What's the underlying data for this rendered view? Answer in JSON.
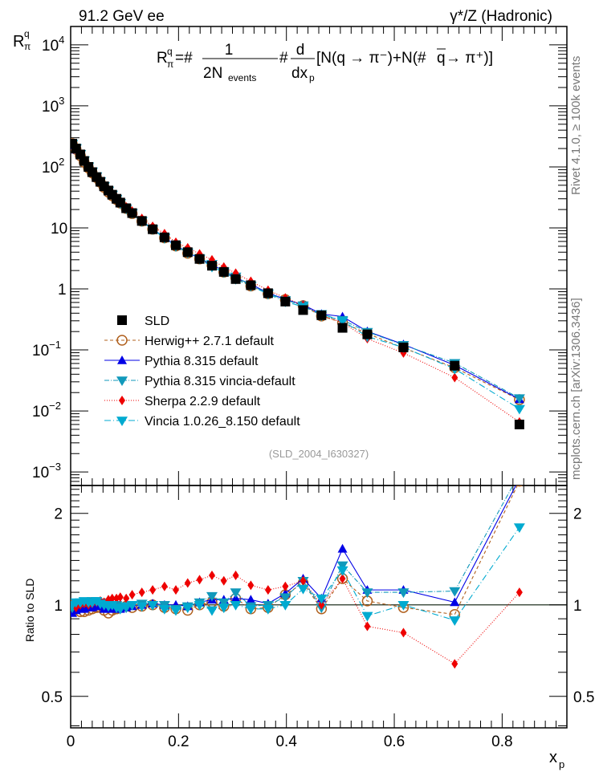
{
  "header": {
    "left": "91.2 GeV ee",
    "right": "γ*/Z (Hadronic)"
  },
  "side_text": {
    "rivet": "Rivet 4.1.0, ≥ 100k events",
    "mcplots": "mcplots.cern.ch [arXiv:1306.3436]"
  },
  "analysis_id": "(SLD_2004_I630327)",
  "formula": {
    "lhs": "R",
    "lhs_sup": "q",
    "lhs_sub": "π",
    "eq": "=#",
    "frac1_num": "1",
    "frac1_den": "2N",
    "frac1_den_sub": "events",
    "hash": "#",
    "frac2_num": "d",
    "frac2_den": "dx",
    "frac2_den_sub": "p",
    "rhs": "[N(q → π⁻)+N(#",
    "qbar": "q",
    "rhs2": " → π⁺)]"
  },
  "colors": {
    "SLD": "#000000",
    "herwig": "#b0601e",
    "pythia": "#0000e6",
    "pythia_vincia": "#1199bb",
    "sherpa": "#ee0000",
    "vincia": "#00aad0"
  },
  "chart_data": {
    "type": "scatter",
    "xlabel": "x",
    "xlabel_sub": "p",
    "ylabel": "R",
    "ylabel_sup": "q",
    "ylabel_sub": "π",
    "ratio_ylabel": "Ratio to SLD",
    "xlim": [
      0,
      0.92
    ],
    "ylim": [
      0.0006,
      20000
    ],
    "yscale": "log",
    "ratio_ylim": [
      0.394,
      2.47
    ],
    "ratio_yscale": "log",
    "x_ticks": [
      "0",
      "0.2",
      "0.4",
      "0.6",
      "0.8"
    ],
    "x_tick_values": [
      0,
      0.2,
      0.4,
      0.6,
      0.8
    ],
    "y_ticks": [
      {
        "v": 10000,
        "base": "10",
        "exp": "4"
      },
      {
        "v": 1000,
        "base": "10",
        "exp": "3"
      },
      {
        "v": 100,
        "base": "10",
        "exp": "2"
      },
      {
        "v": 10,
        "base": "10",
        "exp": ""
      },
      {
        "v": 1,
        "base": "1",
        "exp": ""
      },
      {
        "v": 0.1,
        "base": "10",
        "exp": "−1"
      },
      {
        "v": 0.01,
        "base": "10",
        "exp": "−2"
      },
      {
        "v": 0.001,
        "base": "10",
        "exp": "−3"
      }
    ],
    "ratio_ticks": [
      {
        "v": 2,
        "label": "2"
      },
      {
        "v": 1,
        "label": "1"
      },
      {
        "v": 0.5,
        "label": "0.5"
      }
    ],
    "x": [
      0.003,
      0.01,
      0.018,
      0.025,
      0.033,
      0.04,
      0.048,
      0.055,
      0.062,
      0.07,
      0.077,
      0.085,
      0.092,
      0.103,
      0.114,
      0.132,
      0.152,
      0.174,
      0.195,
      0.217,
      0.239,
      0.262,
      0.284,
      0.306,
      0.334,
      0.366,
      0.398,
      0.431,
      0.465,
      0.504,
      0.55,
      0.617,
      0.712,
      0.832
    ],
    "data": {
      "name": "SLD",
      "values": [
        240,
        200,
        160,
        125,
        100,
        82,
        68,
        57,
        48,
        41,
        35,
        30,
        26,
        21,
        17.5,
        13,
        9.5,
        7.0,
        5.2,
        4.0,
        3.1,
        2.4,
        1.9,
        1.45,
        1.15,
        0.85,
        0.62,
        0.45,
        0.37,
        0.23,
        0.18,
        0.11,
        0.055,
        0.006
      ]
    },
    "series": [
      {
        "name": "Herwig++ 2.7.1 default",
        "key": "herwig",
        "marker": "circle-open",
        "dash": "4,3",
        "ratio": [
          1.0,
          0.97,
          0.95,
          0.95,
          0.96,
          0.97,
          0.98,
          0.98,
          0.96,
          0.94,
          0.96,
          0.97,
          0.98,
          0.99,
          0.98,
          0.99,
          1.0,
          0.98,
          0.97,
          0.96,
          1.0,
          1.02,
          0.99,
          1.05,
          0.97,
          0.98,
          1.08,
          1.18,
          0.97,
          1.22,
          1.03,
          0.98,
          0.93,
          2.55
        ]
      },
      {
        "name": "Pythia 8.315 default",
        "key": "pythia",
        "marker": "triangle-up",
        "dash": "",
        "ratio": [
          0.94,
          0.96,
          0.97,
          0.97,
          0.98,
          0.98,
          0.99,
          0.99,
          0.97,
          0.97,
          0.98,
          0.97,
          0.97,
          0.98,
          0.99,
          1.0,
          1.01,
          1.0,
          1.0,
          0.99,
          1.02,
          1.04,
          1.04,
          1.05,
          1.04,
          1.01,
          1.09,
          1.22,
          1.05,
          1.53,
          1.12,
          1.12,
          1.02,
          2.6
        ]
      },
      {
        "name": "Pythia 8.315 vincia-default",
        "key": "pythia_vincia",
        "marker": "triangle-down",
        "dash": "6,2,1,2",
        "ratio": [
          0.98,
          1.0,
          1.01,
          1.02,
          1.02,
          1.03,
          1.03,
          1.02,
          1.01,
          1.0,
          1.0,
          1.0,
          0.99,
          0.98,
          1.0,
          1.01,
          1.0,
          1.0,
          0.97,
          0.99,
          1.02,
          1.07,
          1.02,
          1.1,
          0.99,
          1.0,
          1.06,
          1.2,
          0.98,
          1.35,
          1.1,
          1.1,
          1.11,
          2.7
        ]
      },
      {
        "name": "Sherpa 2.2.9 default",
        "key": "sherpa",
        "marker": "diamond",
        "dash": "1,2",
        "ratio": [
          1.0,
          0.98,
          1.0,
          1.01,
          1.0,
          1.01,
          1.02,
          1.03,
          1.02,
          1.04,
          1.05,
          1.05,
          1.06,
          1.05,
          1.08,
          1.1,
          1.12,
          1.15,
          1.12,
          1.18,
          1.21,
          1.25,
          1.2,
          1.25,
          1.16,
          1.12,
          1.15,
          1.2,
          1.0,
          1.22,
          0.85,
          0.81,
          0.64,
          1.1
        ]
      },
      {
        "name": "Vincia 1.0.26_8.150 default",
        "key": "vincia",
        "marker": "triangle-down",
        "dash": "8,3,1,3",
        "ratio": [
          1.0,
          1.02,
          1.02,
          1.03,
          1.02,
          1.02,
          1.03,
          1.01,
          1.0,
          0.99,
          1.0,
          0.98,
          0.97,
          0.99,
          1.0,
          0.99,
          1.0,
          0.97,
          0.96,
          0.98,
          1.0,
          0.96,
          0.98,
          1.0,
          0.97,
          0.97,
          1.0,
          1.13,
          1.05,
          1.3,
          0.92,
          1.0,
          0.89,
          1.8
        ]
      }
    ],
    "legend_placement": "center-left"
  }
}
